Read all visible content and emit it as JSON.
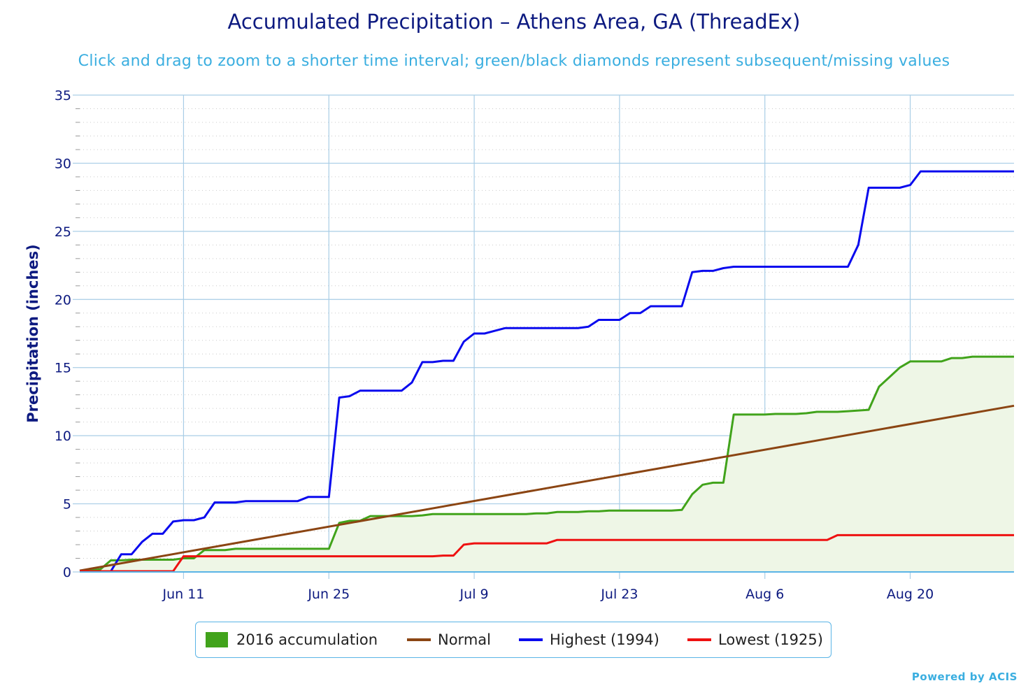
{
  "chart_data": {
    "type": "line",
    "title": "Accumulated Precipitation – Athens Area, GA (ThreadEx)",
    "subtitle": "Click and drag to zoom to a shorter time interval; green/black diamonds represent subsequent/missing values",
    "ylabel": "Precipitation (inches)",
    "xlabel": "",
    "x_tick_labels": [
      "Jun 11",
      "Jun 25",
      "Jul 9",
      "Jul 23",
      "Aug 6",
      "Aug 20"
    ],
    "x_tick_days": [
      11,
      25,
      39,
      53,
      67,
      81
    ],
    "y_ticks": [
      0,
      5,
      10,
      15,
      20,
      25,
      30,
      35
    ],
    "xlim_days": [
      1,
      91
    ],
    "ylim": [
      0,
      35
    ],
    "grid": true,
    "legend_position": "bottom-center",
    "series": [
      {
        "name": "Highest (1994)",
        "color": "#0a0aee",
        "style": "line",
        "points": [
          [
            1,
            0.05
          ],
          [
            2,
            0.05
          ],
          [
            3,
            0.05
          ],
          [
            4,
            0.05
          ],
          [
            5,
            1.3
          ],
          [
            6,
            1.3
          ],
          [
            7,
            2.2
          ],
          [
            8,
            2.8
          ],
          [
            9,
            2.8
          ],
          [
            10,
            3.7
          ],
          [
            11,
            3.8
          ],
          [
            12,
            3.8
          ],
          [
            13,
            4.0
          ],
          [
            14,
            5.1
          ],
          [
            15,
            5.1
          ],
          [
            16,
            5.1
          ],
          [
            17,
            5.2
          ],
          [
            18,
            5.2
          ],
          [
            19,
            5.2
          ],
          [
            20,
            5.2
          ],
          [
            21,
            5.2
          ],
          [
            22,
            5.2
          ],
          [
            23,
            5.5
          ],
          [
            24,
            5.5
          ],
          [
            25,
            5.5
          ],
          [
            26,
            12.8
          ],
          [
            27,
            12.9
          ],
          [
            28,
            13.3
          ],
          [
            29,
            13.3
          ],
          [
            30,
            13.3
          ],
          [
            31,
            13.3
          ],
          [
            32,
            13.3
          ],
          [
            33,
            13.9
          ],
          [
            34,
            15.4
          ],
          [
            35,
            15.4
          ],
          [
            36,
            15.5
          ],
          [
            37,
            15.5
          ],
          [
            38,
            16.9
          ],
          [
            39,
            17.5
          ],
          [
            40,
            17.5
          ],
          [
            41,
            17.7
          ],
          [
            42,
            17.9
          ],
          [
            43,
            17.9
          ],
          [
            44,
            17.9
          ],
          [
            45,
            17.9
          ],
          [
            46,
            17.9
          ],
          [
            47,
            17.9
          ],
          [
            48,
            17.9
          ],
          [
            49,
            17.9
          ],
          [
            50,
            18.0
          ],
          [
            51,
            18.5
          ],
          [
            52,
            18.5
          ],
          [
            53,
            18.5
          ],
          [
            54,
            19.0
          ],
          [
            55,
            19.0
          ],
          [
            56,
            19.5
          ],
          [
            57,
            19.5
          ],
          [
            58,
            19.5
          ],
          [
            59,
            19.5
          ],
          [
            60,
            22.0
          ],
          [
            61,
            22.1
          ],
          [
            62,
            22.1
          ],
          [
            63,
            22.3
          ],
          [
            64,
            22.4
          ],
          [
            65,
            22.4
          ],
          [
            66,
            22.4
          ],
          [
            67,
            22.4
          ],
          [
            68,
            22.4
          ],
          [
            69,
            22.4
          ],
          [
            70,
            22.4
          ],
          [
            71,
            22.4
          ],
          [
            72,
            22.4
          ],
          [
            73,
            22.4
          ],
          [
            74,
            22.4
          ],
          [
            75,
            22.4
          ],
          [
            76,
            24.0
          ],
          [
            77,
            28.2
          ],
          [
            78,
            28.2
          ],
          [
            79,
            28.2
          ],
          [
            80,
            28.2
          ],
          [
            81,
            28.4
          ],
          [
            82,
            29.4
          ],
          [
            83,
            29.4
          ],
          [
            84,
            29.4
          ],
          [
            85,
            29.4
          ],
          [
            86,
            29.4
          ],
          [
            87,
            29.4
          ],
          [
            88,
            29.4
          ],
          [
            89,
            29.4
          ],
          [
            90,
            29.4
          ],
          [
            91,
            29.4
          ]
        ]
      },
      {
        "name": "2016 accumulation",
        "color": "#41a31b",
        "fill": "#eef6e6",
        "style": "area",
        "points": [
          [
            1,
            0.1
          ],
          [
            2,
            0.1
          ],
          [
            3,
            0.2
          ],
          [
            4,
            0.85
          ],
          [
            5,
            0.85
          ],
          [
            6,
            0.9
          ],
          [
            7,
            0.9
          ],
          [
            8,
            0.9
          ],
          [
            9,
            0.9
          ],
          [
            10,
            0.9
          ],
          [
            11,
            1.0
          ],
          [
            12,
            1.0
          ],
          [
            13,
            1.6
          ],
          [
            14,
            1.6
          ],
          [
            15,
            1.6
          ],
          [
            16,
            1.7
          ],
          [
            17,
            1.7
          ],
          [
            18,
            1.7
          ],
          [
            19,
            1.7
          ],
          [
            20,
            1.7
          ],
          [
            21,
            1.7
          ],
          [
            22,
            1.7
          ],
          [
            23,
            1.7
          ],
          [
            24,
            1.7
          ],
          [
            25,
            1.7
          ],
          [
            26,
            3.6
          ],
          [
            27,
            3.75
          ],
          [
            28,
            3.75
          ],
          [
            29,
            4.1
          ],
          [
            30,
            4.1
          ],
          [
            31,
            4.1
          ],
          [
            32,
            4.1
          ],
          [
            33,
            4.1
          ],
          [
            34,
            4.15
          ],
          [
            35,
            4.25
          ],
          [
            36,
            4.25
          ],
          [
            37,
            4.25
          ],
          [
            38,
            4.25
          ],
          [
            39,
            4.25
          ],
          [
            40,
            4.25
          ],
          [
            41,
            4.25
          ],
          [
            42,
            4.25
          ],
          [
            43,
            4.25
          ],
          [
            44,
            4.25
          ],
          [
            45,
            4.3
          ],
          [
            46,
            4.3
          ],
          [
            47,
            4.4
          ],
          [
            48,
            4.4
          ],
          [
            49,
            4.4
          ],
          [
            50,
            4.45
          ],
          [
            51,
            4.45
          ],
          [
            52,
            4.5
          ],
          [
            53,
            4.5
          ],
          [
            54,
            4.5
          ],
          [
            55,
            4.5
          ],
          [
            56,
            4.5
          ],
          [
            57,
            4.5
          ],
          [
            58,
            4.5
          ],
          [
            59,
            4.55
          ],
          [
            60,
            5.7
          ],
          [
            61,
            6.4
          ],
          [
            62,
            6.55
          ],
          [
            63,
            6.55
          ],
          [
            64,
            11.55
          ],
          [
            65,
            11.55
          ],
          [
            66,
            11.55
          ],
          [
            67,
            11.55
          ],
          [
            68,
            11.6
          ],
          [
            69,
            11.6
          ],
          [
            70,
            11.6
          ],
          [
            71,
            11.65
          ],
          [
            72,
            11.75
          ],
          [
            73,
            11.75
          ],
          [
            74,
            11.75
          ],
          [
            75,
            11.8
          ],
          [
            76,
            11.85
          ],
          [
            77,
            11.9
          ],
          [
            78,
            13.6
          ],
          [
            79,
            14.3
          ],
          [
            80,
            15.0
          ],
          [
            81,
            15.45
          ],
          [
            82,
            15.45
          ],
          [
            83,
            15.45
          ],
          [
            84,
            15.45
          ],
          [
            85,
            15.7
          ],
          [
            86,
            15.7
          ],
          [
            87,
            15.8
          ],
          [
            88,
            15.8
          ],
          [
            89,
            15.8
          ],
          [
            90,
            15.8
          ],
          [
            91,
            15.8
          ]
        ]
      },
      {
        "name": "Normal",
        "color": "#8b4513",
        "style": "line",
        "points": [
          [
            1,
            0.1
          ],
          [
            91,
            12.2
          ]
        ]
      },
      {
        "name": "Lowest (1925)",
        "color": "#ee1111",
        "style": "line",
        "points": [
          [
            1,
            0.05
          ],
          [
            10,
            0.05
          ],
          [
            11,
            1.15
          ],
          [
            12,
            1.15
          ],
          [
            35,
            1.15
          ],
          [
            36,
            1.2
          ],
          [
            37,
            1.2
          ],
          [
            38,
            2.0
          ],
          [
            39,
            2.1
          ],
          [
            46,
            2.1
          ],
          [
            47,
            2.35
          ],
          [
            73,
            2.35
          ],
          [
            74,
            2.7
          ],
          [
            91,
            2.7
          ]
        ]
      }
    ],
    "legend_items": [
      {
        "name": "2016 accumulation",
        "color": "#41a31b",
        "marker": "box"
      },
      {
        "name": "Normal",
        "color": "#8b4513",
        "marker": "line"
      },
      {
        "name": "Highest (1994)",
        "color": "#0a0aee",
        "marker": "line"
      },
      {
        "name": "Lowest (1925)",
        "color": "#ee1111",
        "marker": "line"
      }
    ]
  },
  "credit": "Powered by ACIS"
}
